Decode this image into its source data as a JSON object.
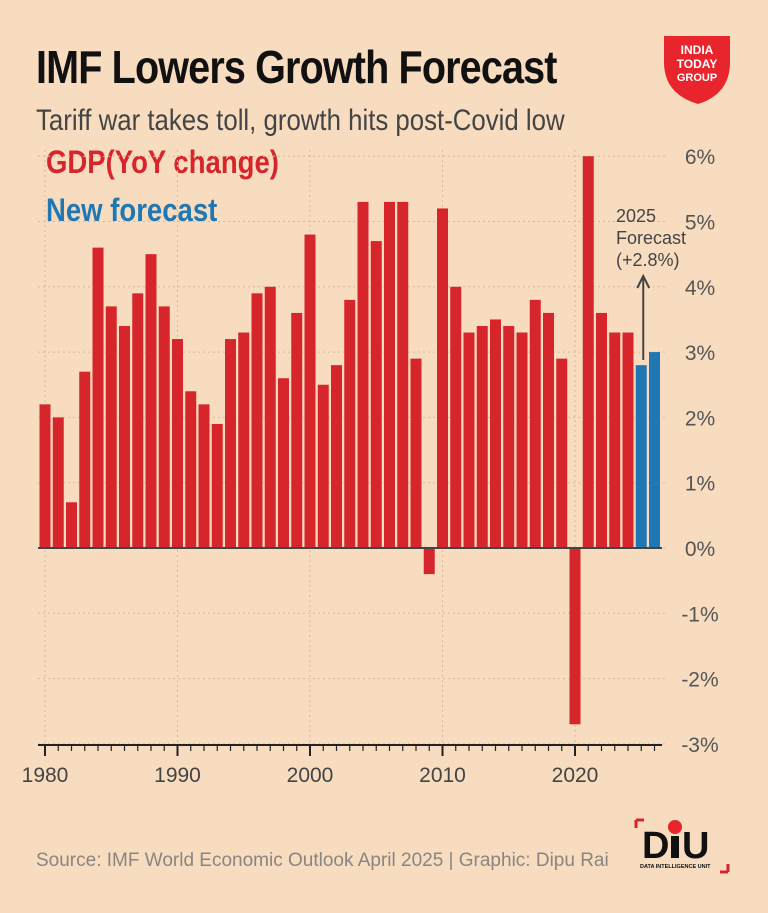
{
  "header": {
    "title": "IMF Lowers Growth Forecast",
    "subtitle": "Tariff war takes toll, growth hits post-Covid low",
    "logo_text": "INDIA TODAY GROUP"
  },
  "footer": {
    "source": "Source: IMF World Economic Outlook April 2025 | Graphic: Dipu Rai",
    "logo_text": "DIU DATA INTELLIGENCE UNIT"
  },
  "chart_data": {
    "type": "bar",
    "title": "IMF Lowers Growth Forecast",
    "subtitle": "Tariff war takes toll, growth hits post-Covid low",
    "legend": [
      {
        "name": "GDP(YoY change)",
        "color": "#d7262b"
      },
      {
        "name": "New forecast",
        "color": "#1f77b4"
      }
    ],
    "legend_placement": "top-left",
    "x": [
      1980,
      1981,
      1982,
      1983,
      1984,
      1985,
      1986,
      1987,
      1988,
      1989,
      1990,
      1991,
      1992,
      1993,
      1994,
      1995,
      1996,
      1997,
      1998,
      1999,
      2000,
      2001,
      2002,
      2003,
      2004,
      2005,
      2006,
      2007,
      2008,
      2009,
      2010,
      2011,
      2012,
      2013,
      2014,
      2015,
      2016,
      2017,
      2018,
      2019,
      2020,
      2021,
      2022,
      2023,
      2024,
      2025,
      2026
    ],
    "values": [
      2.2,
      2.0,
      0.7,
      2.7,
      4.6,
      3.7,
      3.4,
      3.9,
      4.5,
      3.7,
      3.2,
      2.4,
      2.2,
      1.9,
      3.2,
      3.3,
      3.9,
      4.0,
      2.6,
      3.6,
      4.8,
      2.5,
      2.8,
      3.8,
      5.3,
      4.7,
      5.3,
      5.3,
      2.9,
      -0.4,
      5.2,
      4.0,
      3.3,
      3.4,
      3.5,
      3.4,
      3.3,
      3.8,
      3.6,
      2.9,
      -2.7,
      6.0,
      3.6,
      3.3,
      3.3,
      2.8,
      3.0
    ],
    "forecast_years": [
      2025,
      2026
    ],
    "ylim": [
      -3,
      6
    ],
    "y_ticks": [
      6,
      5,
      4,
      3,
      2,
      1,
      0,
      -1,
      -2,
      -3
    ],
    "y_tick_labels": [
      "6%",
      "5%",
      "4%",
      "3%",
      "2%",
      "1%",
      "0%",
      "-1%",
      "-2%",
      "-3%"
    ],
    "x_ticks": [
      "1980",
      "1990",
      "2000",
      "2010",
      "2020"
    ],
    "grid": true,
    "annotation": {
      "lines": [
        "2025",
        "Forecast",
        "(+2.8%)"
      ],
      "year": 2025
    },
    "xlabel": "",
    "ylabel": ""
  }
}
